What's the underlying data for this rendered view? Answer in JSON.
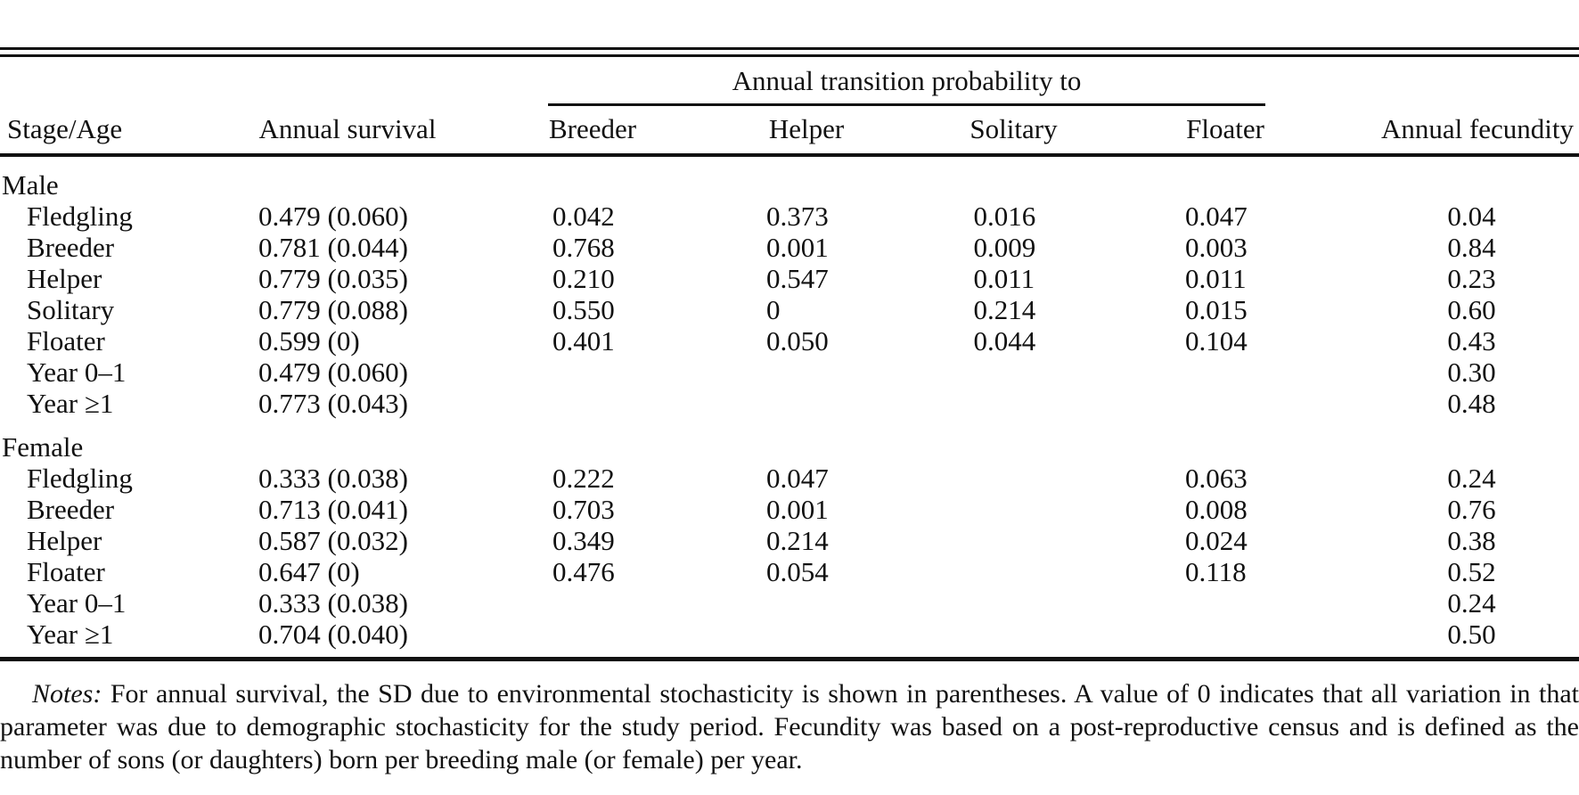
{
  "table": {
    "spanner": "Annual transition probability to",
    "columns": {
      "stage": "Stage/Age",
      "survival": "Annual survival",
      "breeder": "Breeder",
      "helper": "Helper",
      "solitary": "Solitary",
      "floater": "Floater",
      "fecundity": "Annual fecundity"
    },
    "sections": [
      {
        "label": "Male",
        "rows": [
          {
            "stage": "Fledgling",
            "survival": "0.479 (0.060)",
            "breeder": "0.042",
            "helper": "0.373",
            "solitary": "0.016",
            "floater": "0.047",
            "fecundity": "0.04"
          },
          {
            "stage": "Breeder",
            "survival": "0.781 (0.044)",
            "breeder": "0.768",
            "helper": "0.001",
            "solitary": "0.009",
            "floater": "0.003",
            "fecundity": "0.84"
          },
          {
            "stage": "Helper",
            "survival": "0.779 (0.035)",
            "breeder": "0.210",
            "helper": "0.547",
            "solitary": "0.011",
            "floater": "0.011",
            "fecundity": "0.23"
          },
          {
            "stage": "Solitary",
            "survival": "0.779 (0.088)",
            "breeder": "0.550",
            "helper": "0",
            "solitary": "0.214",
            "floater": "0.015",
            "fecundity": "0.60"
          },
          {
            "stage": "Floater",
            "survival": "0.599 (0)",
            "breeder": "0.401",
            "helper": "0.050",
            "solitary": "0.044",
            "floater": "0.104",
            "fecundity": "0.43"
          },
          {
            "stage": "Year 0–1",
            "survival": "0.479 (0.060)",
            "fecundity": "0.30"
          },
          {
            "stage": "Year ≥1",
            "survival": "0.773 (0.043)",
            "fecundity": "0.48"
          }
        ]
      },
      {
        "label": "Female",
        "rows": [
          {
            "stage": "Fledgling",
            "survival": "0.333 (0.038)",
            "breeder": "0.222",
            "helper": "0.047",
            "floater": "0.063",
            "fecundity": "0.24"
          },
          {
            "stage": "Breeder",
            "survival": "0.713 (0.041)",
            "breeder": "0.703",
            "helper": "0.001",
            "floater": "0.008",
            "fecundity": "0.76"
          },
          {
            "stage": "Helper",
            "survival": "0.587 (0.032)",
            "breeder": "0.349",
            "helper": "0.214",
            "floater": "0.024",
            "fecundity": "0.38"
          },
          {
            "stage": "Floater",
            "survival": "0.647 (0)",
            "breeder": "0.476",
            "helper": "0.054",
            "floater": "0.118",
            "fecundity": "0.52"
          },
          {
            "stage": "Year 0–1",
            "survival": "0.333 (0.038)",
            "fecundity": "0.24"
          },
          {
            "stage": "Year ≥1",
            "survival": "0.704 (0.040)",
            "fecundity": "0.50"
          }
        ]
      }
    ]
  },
  "notes": {
    "label": "Notes:",
    "text": "For annual survival, the SD due to environmental stochasticity is shown in parentheses. A value of 0 indicates that all variation in that parameter was due to demographic stochasticity for the study period. Fecundity was based on a post-reproductive census and is defined as the number of sons (or daughters) born per breeding male (or female) per year."
  }
}
